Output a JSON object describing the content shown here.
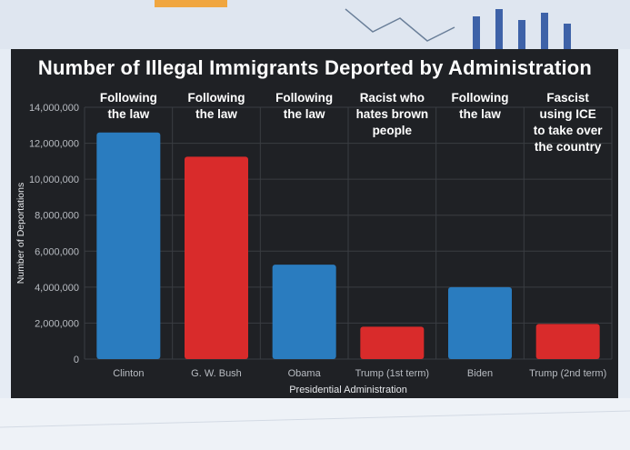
{
  "colors": {
    "blue": "#2a7cbf",
    "red": "#d92b2b",
    "panel": "#1f2125",
    "grid": "#3a3d42",
    "tick": "#b8bcc2"
  },
  "chart_data": {
    "type": "bar",
    "title": "Number of Illegal Immigrants Deported by Administration",
    "xlabel": "Presidential Administration",
    "ylabel": "Number of Deportations",
    "ylim": [
      0,
      14000000
    ],
    "yticks": [
      "0",
      "2,000,000",
      "4,000,000",
      "6,000,000",
      "8,000,000",
      "10,000,000",
      "12,000,000",
      "14,000,000"
    ],
    "ytick_values": [
      0,
      2000000,
      4000000,
      6000000,
      8000000,
      10000000,
      12000000,
      14000000
    ],
    "grid": true,
    "categories": [
      "Clinton",
      "G. W. Bush",
      "Obama",
      "Trump (1st term)",
      "Biden",
      "Trump (2nd term)"
    ],
    "values": [
      12600000,
      11250000,
      5250000,
      1800000,
      4000000,
      1950000
    ],
    "bar_colors": [
      "blue",
      "red",
      "blue",
      "red",
      "blue",
      "red"
    ],
    "annotations": [
      "Following\nthe law",
      "Following\nthe law",
      "Following\nthe law",
      "Racist who\nhates brown\npeople",
      "Following\nthe law",
      "Fascist\nusing ICE\nto take over\nthe country"
    ]
  }
}
